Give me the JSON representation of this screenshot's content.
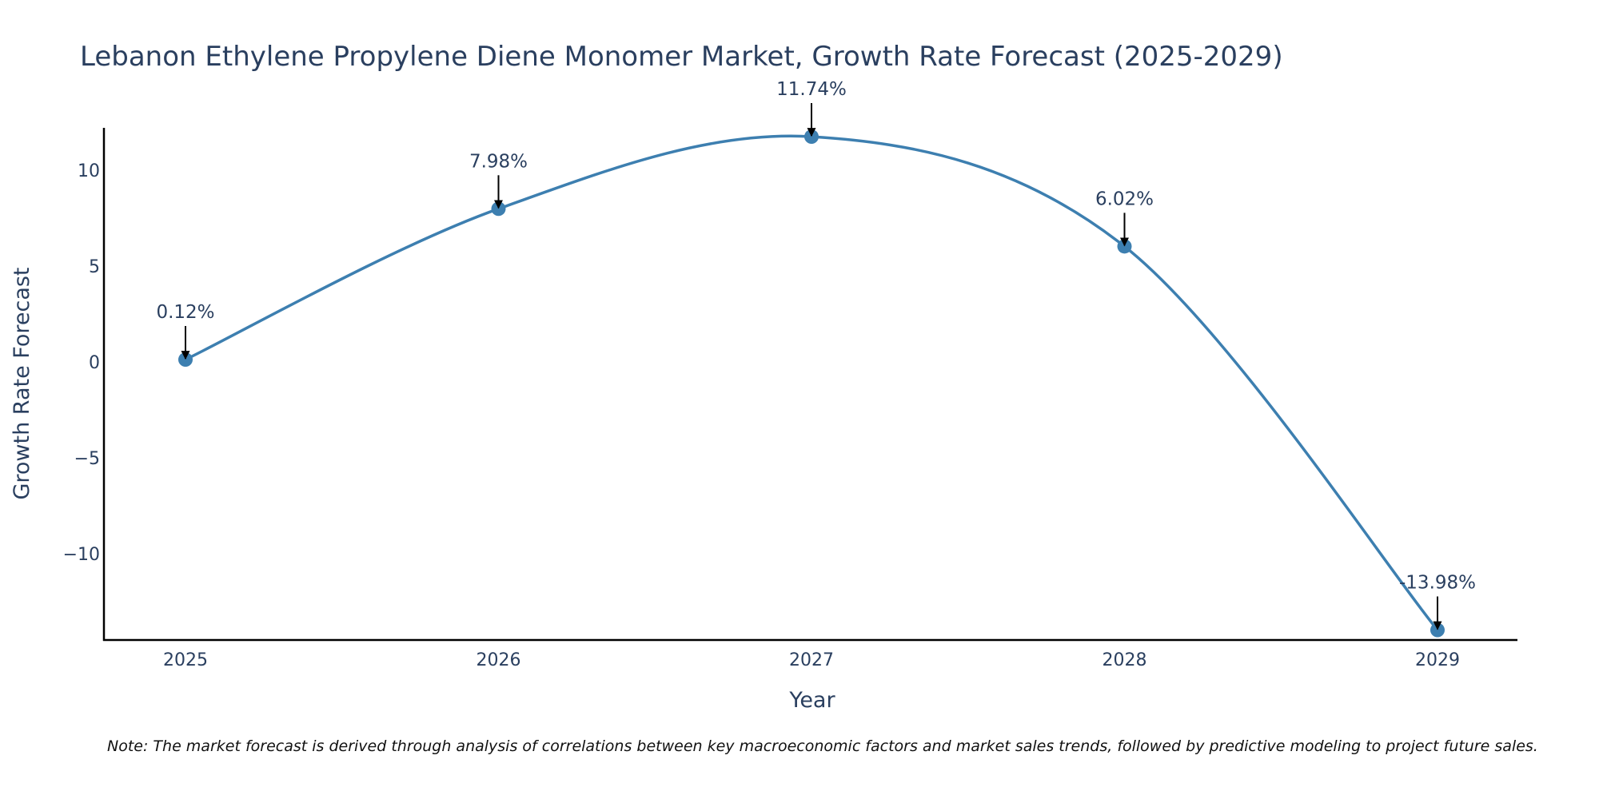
{
  "chart_data": {
    "type": "line",
    "title": "Lebanon Ethylene Propylene Diene Monomer Market, Growth Rate Forecast (2025-2029)",
    "xlabel": "Year",
    "ylabel": "Growth Rate Forecast",
    "categories": [
      "2025",
      "2026",
      "2027",
      "2028",
      "2029"
    ],
    "series": [
      {
        "name": "Growth Rate Forecast",
        "values": [
          0.12,
          7.98,
          11.74,
          6.02,
          -13.98
        ]
      }
    ],
    "data_labels": [
      "0.12%",
      "7.98%",
      "11.74%",
      "6.02%",
      "-13.98%"
    ],
    "y_ticks": [
      10,
      5,
      0,
      -5,
      -10
    ],
    "y_tick_labels": [
      "10",
      "5",
      "0",
      "−5",
      "−10"
    ],
    "ylim": [
      -14.5,
      12.2
    ],
    "line_color": "#3d7fb0",
    "marker_color": "#3d7fb0",
    "grid": false,
    "legend": "none",
    "note": "Note: The market forecast is derived through analysis of correlations between key macroeconomic factors and market sales trends, followed by predictive modeling to project future sales."
  }
}
